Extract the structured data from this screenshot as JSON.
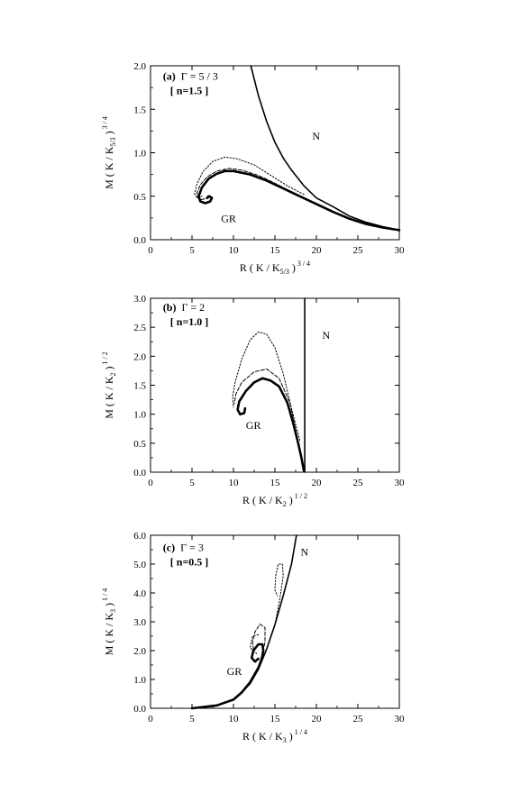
{
  "chart_data": [
    {
      "type": "line",
      "panel": "(a)",
      "annotation_gamma": "Γ = 5 / 3",
      "annotation_n": "[ n=1.5 ]",
      "label_newtonian": "N",
      "label_gr": "GR",
      "xlabel": {
        "pre": "R ( K / K",
        "sub": "5/3",
        "post": " )",
        "sup": "3 / 4"
      },
      "ylabel": {
        "pre": "M ( K / K",
        "sub": "5/3",
        "post": " )",
        "sup": "3 / 4"
      },
      "xlim": [
        0,
        30
      ],
      "ylim": [
        0,
        2.0
      ],
      "xticks": [
        "0",
        "5",
        "10",
        "15",
        "20",
        "25",
        "30"
      ],
      "yticks": [
        "0.0",
        "0.5",
        "1.0",
        "1.5",
        "2.0"
      ],
      "series": [
        {
          "style": "solid-thin",
          "values": [
            [
              12.1,
              2.0
            ],
            [
              13.0,
              1.66
            ],
            [
              14.0,
              1.36
            ],
            [
              15.0,
              1.12
            ],
            [
              16.0,
              0.94
            ],
            [
              17.0,
              0.8
            ],
            [
              18.5,
              0.62
            ],
            [
              20.0,
              0.48
            ],
            [
              22.0,
              0.38
            ],
            [
              24.0,
              0.27
            ],
            [
              26.0,
              0.2
            ],
            [
              28.0,
              0.15
            ],
            [
              30.0,
              0.11
            ]
          ]
        },
        {
          "style": "solid-thick",
          "values": [
            [
              30.0,
              0.11
            ],
            [
              28.0,
              0.14
            ],
            [
              26.0,
              0.18
            ],
            [
              24.0,
              0.24
            ],
            [
              22.0,
              0.32
            ],
            [
              20.0,
              0.41
            ],
            [
              18.0,
              0.5
            ],
            [
              16.0,
              0.59
            ],
            [
              14.0,
              0.68
            ],
            [
              12.0,
              0.75
            ],
            [
              10.0,
              0.79
            ],
            [
              9.0,
              0.79
            ],
            [
              8.0,
              0.76
            ],
            [
              7.0,
              0.7
            ],
            [
              6.2,
              0.6
            ],
            [
              5.8,
              0.5
            ],
            [
              6.0,
              0.44
            ],
            [
              6.6,
              0.42
            ],
            [
              7.2,
              0.44
            ],
            [
              7.4,
              0.48
            ],
            [
              7.1,
              0.5
            ],
            [
              6.8,
              0.48
            ]
          ]
        },
        {
          "style": "dashed",
          "values": [
            [
              17.0,
              0.55
            ],
            [
              15.0,
              0.65
            ],
            [
              13.0,
              0.74
            ],
            [
              11.0,
              0.8
            ],
            [
              9.5,
              0.82
            ],
            [
              8.0,
              0.79
            ],
            [
              6.8,
              0.72
            ],
            [
              6.0,
              0.63
            ],
            [
              5.6,
              0.54
            ],
            [
              5.7,
              0.48
            ],
            [
              6.2,
              0.46
            ],
            [
              6.8,
              0.48
            ],
            [
              7.0,
              0.52
            ]
          ]
        },
        {
          "style": "dotted",
          "values": [
            [
              18.5,
              0.52
            ],
            [
              16.5,
              0.62
            ],
            [
              14.5,
              0.74
            ],
            [
              12.5,
              0.86
            ],
            [
              10.5,
              0.93
            ],
            [
              9.0,
              0.95
            ],
            [
              7.5,
              0.9
            ],
            [
              6.3,
              0.78
            ],
            [
              5.6,
              0.64
            ],
            [
              5.3,
              0.53
            ],
            [
              5.6,
              0.48
            ],
            [
              6.2,
              0.5
            ]
          ]
        }
      ]
    },
    {
      "type": "line",
      "panel": "(b)",
      "annotation_gamma": "Γ = 2",
      "annotation_n": "[ n=1.0 ]",
      "label_newtonian": "N",
      "label_gr": "GR",
      "xlabel": {
        "pre": "R ( K / K",
        "sub": "2",
        "post": " )",
        "sup": "1 / 2"
      },
      "ylabel": {
        "pre": "M ( K / K",
        "sub": "2",
        "post": " )",
        "sup": "1 / 2"
      },
      "xlim": [
        0,
        30
      ],
      "ylim": [
        0,
        3.0
      ],
      "xticks": [
        "0",
        "5",
        "10",
        "15",
        "20",
        "25",
        "30"
      ],
      "yticks": [
        "0.0",
        "0.5",
        "1.0",
        "1.5",
        "2.0",
        "2.5",
        "3.0"
      ],
      "series": [
        {
          "style": "solid-thin",
          "values": [
            [
              18.6,
              0.0
            ],
            [
              18.6,
              3.0
            ]
          ]
        },
        {
          "style": "solid-thick",
          "values": [
            [
              18.5,
              0.02
            ],
            [
              18.2,
              0.25
            ],
            [
              17.8,
              0.5
            ],
            [
              17.2,
              0.85
            ],
            [
              16.5,
              1.2
            ],
            [
              15.5,
              1.48
            ],
            [
              14.5,
              1.58
            ],
            [
              13.5,
              1.62
            ],
            [
              12.5,
              1.55
            ],
            [
              11.5,
              1.4
            ],
            [
              10.7,
              1.22
            ],
            [
              10.5,
              1.08
            ],
            [
              10.8,
              1.0
            ],
            [
              11.3,
              1.02
            ],
            [
              11.4,
              1.1
            ]
          ]
        },
        {
          "style": "dashed",
          "values": [
            [
              18.0,
              0.4
            ],
            [
              16.8,
              1.2
            ],
            [
              15.5,
              1.62
            ],
            [
              14.0,
              1.78
            ],
            [
              12.5,
              1.73
            ],
            [
              11.0,
              1.55
            ],
            [
              10.3,
              1.35
            ],
            [
              10.1,
              1.18
            ]
          ]
        },
        {
          "style": "dotted",
          "values": [
            [
              18.0,
              0.55
            ],
            [
              17.0,
              1.1
            ],
            [
              16.0,
              1.7
            ],
            [
              15.0,
              2.15
            ],
            [
              14.0,
              2.38
            ],
            [
              13.0,
              2.42
            ],
            [
              12.0,
              2.28
            ],
            [
              11.0,
              1.95
            ],
            [
              10.2,
              1.55
            ],
            [
              9.9,
              1.3
            ],
            [
              10.0,
              1.12
            ]
          ]
        }
      ]
    },
    {
      "type": "line",
      "panel": "(c)",
      "annotation_gamma": "Γ = 3",
      "annotation_n": "[ n=0.5 ]",
      "label_newtonian": "N",
      "label_gr": "GR",
      "xlabel": {
        "pre": "R ( K / K",
        "sub": "3",
        "post": " )",
        "sup": "1 / 4"
      },
      "ylabel": {
        "pre": "M ( K / K",
        "sub": "3",
        "post": " )",
        "sup": "1 / 4"
      },
      "xlim": [
        0,
        30
      ],
      "ylim": [
        0,
        6.0
      ],
      "xticks": [
        "0",
        "5",
        "10",
        "15",
        "20",
        "25",
        "30"
      ],
      "yticks": [
        "0.0",
        "1.0",
        "2.0",
        "3.0",
        "4.0",
        "5.0",
        "6.0"
      ],
      "series": [
        {
          "style": "solid-thin",
          "values": [
            [
              5.0,
              0.0
            ],
            [
              8.0,
              0.1
            ],
            [
              10.0,
              0.3
            ],
            [
              11.0,
              0.55
            ],
            [
              12.0,
              0.85
            ],
            [
              13.0,
              1.35
            ],
            [
              14.0,
              2.05
            ],
            [
              15.0,
              2.9
            ],
            [
              16.0,
              3.9
            ],
            [
              17.0,
              5.0
            ],
            [
              17.6,
              6.0
            ]
          ]
        },
        {
          "style": "solid-thick",
          "values": [
            [
              5.0,
              0.0
            ],
            [
              8.0,
              0.1
            ],
            [
              10.0,
              0.3
            ],
            [
              11.0,
              0.55
            ],
            [
              12.0,
              0.9
            ],
            [
              13.0,
              1.4
            ],
            [
              13.4,
              1.7
            ],
            [
              13.6,
              2.0
            ],
            [
              13.5,
              2.22
            ],
            [
              13.0,
              2.22
            ],
            [
              12.4,
              2.0
            ],
            [
              12.2,
              1.75
            ],
            [
              12.6,
              1.62
            ],
            [
              13.0,
              1.72
            ]
          ]
        },
        {
          "style": "dashed",
          "values": [
            [
              13.3,
              1.6
            ],
            [
              13.8,
              2.3
            ],
            [
              13.8,
              2.8
            ],
            [
              13.2,
              2.92
            ],
            [
              12.6,
              2.65
            ],
            [
              12.3,
              2.3
            ],
            [
              12.4,
              2.05
            ]
          ]
        },
        {
          "style": "dotted",
          "values": [
            [
              15.0,
              2.9
            ],
            [
              15.6,
              3.8
            ],
            [
              16.0,
              4.6
            ],
            [
              15.9,
              5.0
            ],
            [
              15.4,
              5.0
            ],
            [
              15.1,
              4.6
            ],
            [
              15.0,
              4.1
            ],
            [
              15.3,
              3.9
            ]
          ]
        },
        {
          "style": "dotted",
          "values": [
            [
              12.8,
              1.9
            ],
            [
              12.0,
              2.1
            ],
            [
              12.3,
              2.5
            ],
            [
              13.0,
              2.55
            ]
          ]
        }
      ]
    }
  ]
}
